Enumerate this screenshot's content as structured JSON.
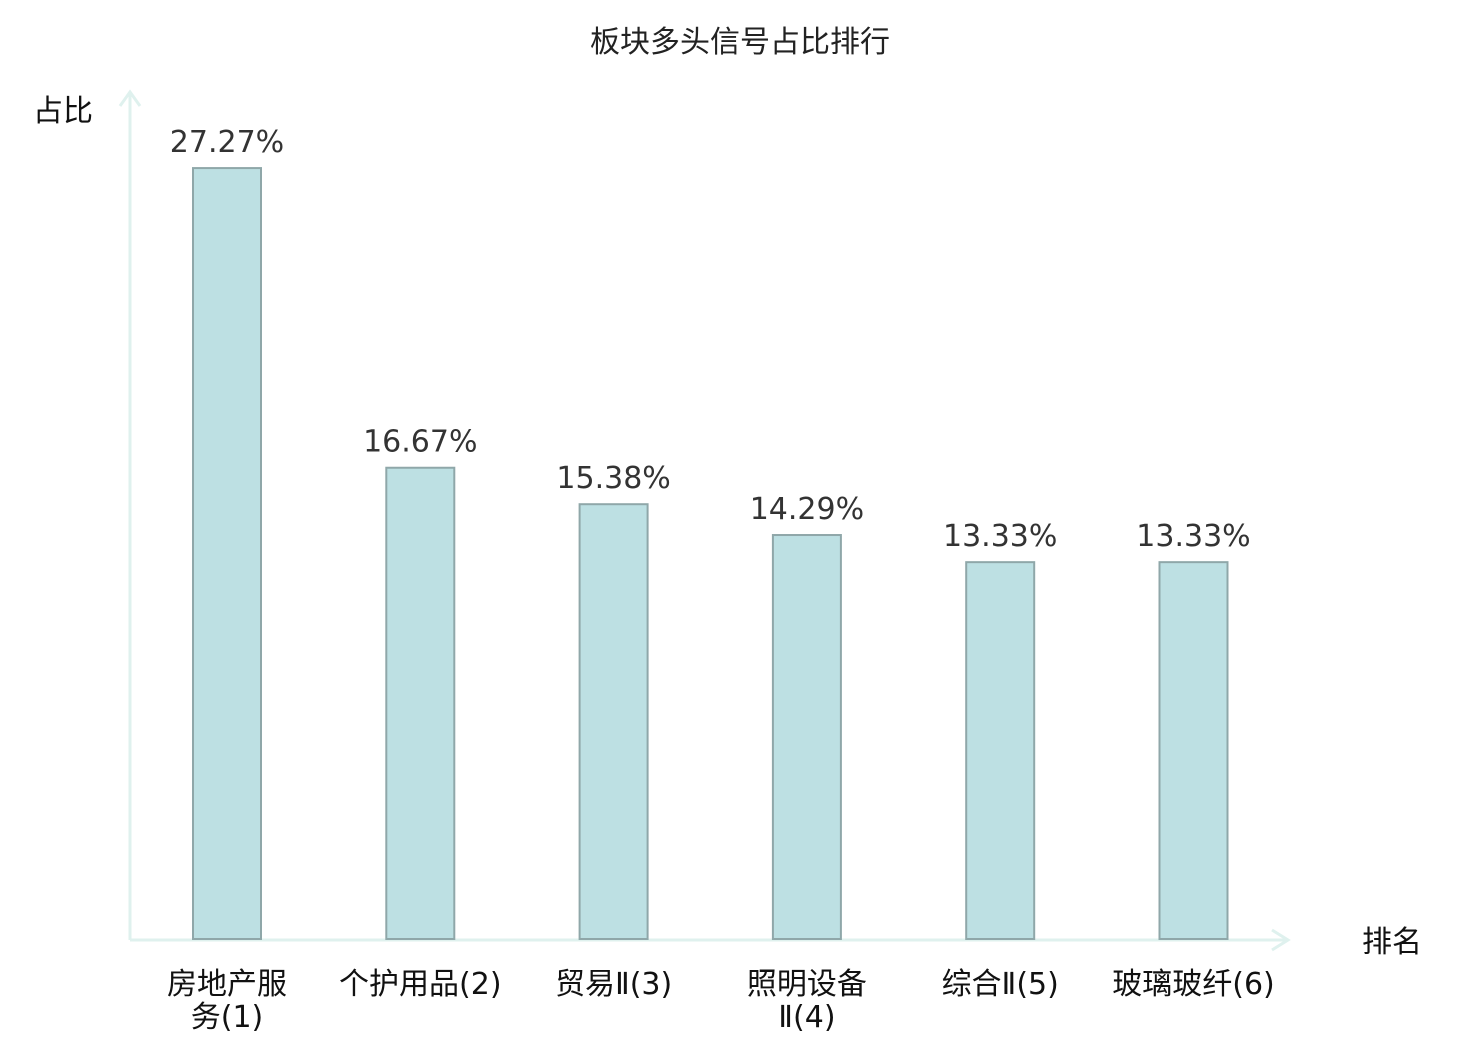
{
  "chart_data": {
    "type": "bar",
    "title": "板块多头信号占比排行",
    "ylabel": "占比",
    "xlabel": "排名",
    "ylim": [
      0,
      30
    ],
    "grid": false,
    "categories": [
      [
        "房地产服",
        "务(1)"
      ],
      [
        "个护用品(2)"
      ],
      [
        "贸易Ⅱ(3)"
      ],
      [
        "照明设备",
        "Ⅱ(4)"
      ],
      [
        "综合Ⅱ(5)"
      ],
      [
        "玻璃玻纤(6)"
      ]
    ],
    "values": [
      27.27,
      16.67,
      15.38,
      14.29,
      13.33,
      13.33
    ],
    "value_labels": [
      "27.27%",
      "16.67%",
      "15.38%",
      "14.29%",
      "13.33%",
      "13.33%"
    ],
    "highlight_index": 5
  },
  "colors": {
    "bar_fill": "#bde0e3",
    "bar_stroke": "#8fa7a9",
    "axis": "#dff1ee",
    "highlight_text": "#e01010",
    "text": "#111111"
  }
}
